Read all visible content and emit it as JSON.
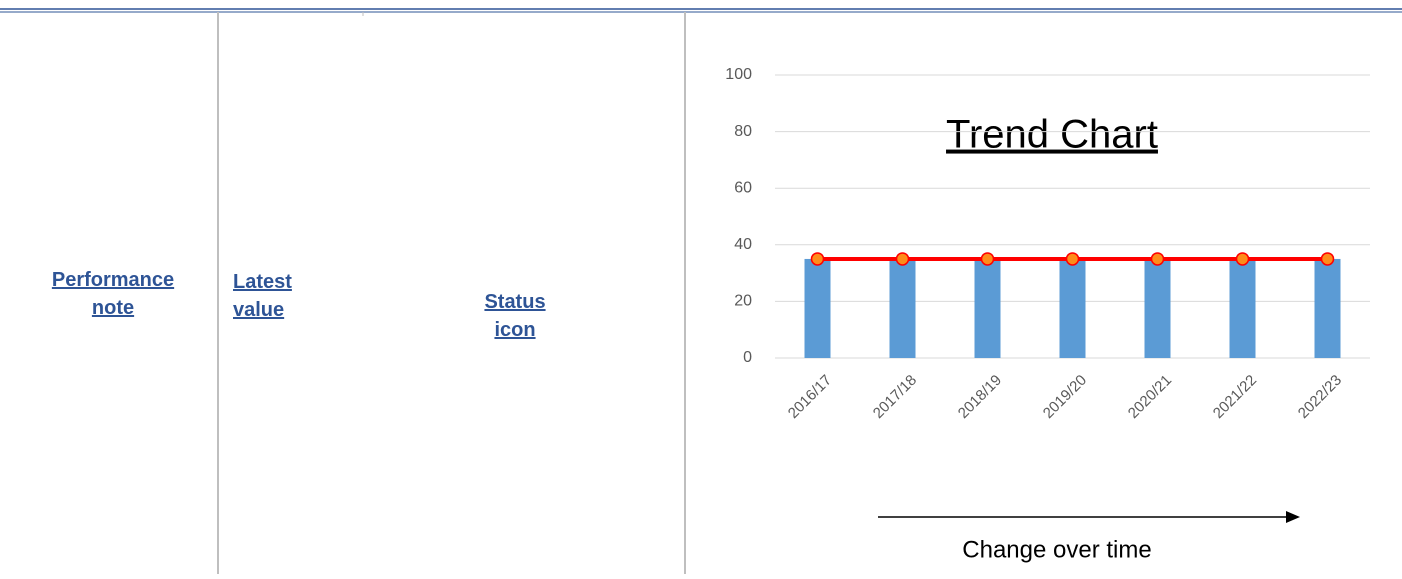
{
  "table": {
    "headers": [
      "Performance note",
      "Latest value",
      "Status icon"
    ]
  },
  "chart_data": {
    "type": "bar",
    "title": "Trend Chart",
    "annotation": "Change over time",
    "categories": [
      "2016/17",
      "2017/18",
      "2018/19",
      "2019/20",
      "2020/21",
      "2021/22",
      "2022/23"
    ],
    "series": [
      {
        "type": "bar",
        "color": "#5b9bd5",
        "values": [
          35,
          35,
          35,
          35,
          35,
          35,
          35
        ]
      },
      {
        "type": "line",
        "color": "#ff0000",
        "marker_color": "#ff8c1a",
        "values": [
          35,
          35,
          35,
          35,
          35,
          35,
          35
        ]
      }
    ],
    "ylim": [
      0,
      100
    ],
    "yticks": [
      0,
      20,
      40,
      60,
      80,
      100
    ],
    "grid": true
  }
}
